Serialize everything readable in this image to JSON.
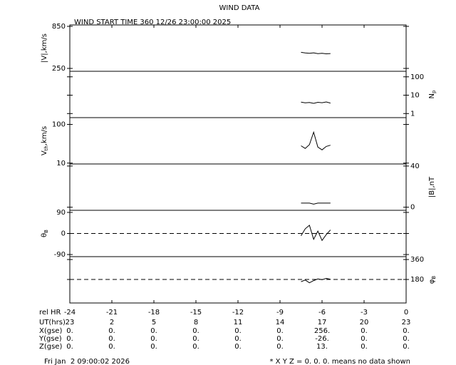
{
  "chart_data": {
    "type": "line",
    "title": "WIND DATA",
    "subtitle": "WIND START TIME 360 12/26 23:00:00 2025",
    "x_label": "rel HR",
    "xlim": [
      -24,
      0
    ],
    "xticks": [
      -24,
      -21,
      -18,
      -15,
      -12,
      -9,
      -6,
      -3,
      0
    ],
    "x": [
      -7.5,
      -7.2,
      -6.9,
      -6.6,
      -6.3,
      -6.0,
      -5.7,
      -5.4
    ],
    "panels": [
      {
        "ylabel": [
          {
            "text": "|V|,km/s"
          }
        ],
        "label_side": "left",
        "log": false,
        "ylim": [
          209,
          870
        ],
        "yticks": [
          850,
          250
        ],
        "values": [
          480,
          470,
          465,
          472,
          460,
          466,
          458,
          462
        ]
      },
      {
        "ylabel": [
          {
            "text": "N"
          },
          {
            "text": "p",
            "sub": true
          }
        ],
        "label_side": "right",
        "log": true,
        "ylim": [
          0.6,
          200
        ],
        "yticks": [
          100,
          10,
          1
        ],
        "values": [
          4.2,
          3.8,
          4.0,
          3.6,
          4.1,
          3.9,
          4.3,
          3.7
        ]
      },
      {
        "ylabel": [
          {
            "text": "V"
          },
          {
            "text": "th",
            "sub": true
          },
          {
            "text": ",km/s"
          }
        ],
        "label_side": "left",
        "log": true,
        "ylim": [
          9.5,
          150
        ],
        "yticks": [
          100,
          10
        ],
        "values": [
          28,
          24,
          30,
          63,
          26,
          22,
          27,
          29
        ]
      },
      {
        "ylabel": [
          {
            "text": "|B|,nT"
          }
        ],
        "label_side": "right",
        "log": false,
        "ylim": [
          -3,
          42
        ],
        "yticks": [
          40,
          0
        ],
        "values": [
          4,
          4,
          4,
          3,
          4,
          4,
          4,
          4
        ]
      },
      {
        "ylabel": [
          {
            "text": "θ"
          },
          {
            "text": "B",
            "sub": true
          }
        ],
        "label_side": "left",
        "log": false,
        "ylim": [
          -99,
          99
        ],
        "yticks": [
          90,
          0,
          -90
        ],
        "ref_line": 0,
        "values": [
          -10,
          20,
          35,
          -25,
          10,
          -30,
          -5,
          15
        ]
      },
      {
        "ylabel": [
          {
            "text": "φ"
          },
          {
            "text": "B",
            "sub": true
          }
        ],
        "label_side": "right",
        "log": false,
        "ylim": [
          -32,
          386
        ],
        "yticks": [
          360,
          180
        ],
        "ref_line": 180,
        "values": [
          160,
          175,
          150,
          170,
          185,
          178,
          190,
          182
        ]
      }
    ],
    "ephemeris": [
      {
        "label": "UT(hrs)",
        "values": [
          "23",
          "2",
          "5",
          "8",
          "11",
          "14",
          "17",
          "20",
          "23"
        ]
      },
      {
        "label": "X(gse)",
        "values": [
          "0.",
          "0.",
          "0.",
          "0.",
          "0.",
          "0.",
          "256.",
          "0.",
          "0."
        ]
      },
      {
        "label": "Y(gse)",
        "values": [
          "0.",
          "0.",
          "0.",
          "0.",
          "0.",
          "0.",
          "-26.",
          "0.",
          "0."
        ]
      },
      {
        "label": "Z(gse)",
        "values": [
          "0.",
          "0.",
          "0.",
          "0.",
          "0.",
          "0.",
          "13.",
          "0.",
          "0."
        ]
      }
    ],
    "footer_left": "Fri Jan  2 09:00:02 2026",
    "footer_right": "* X Y Z = 0. 0. 0. means no data shown"
  }
}
